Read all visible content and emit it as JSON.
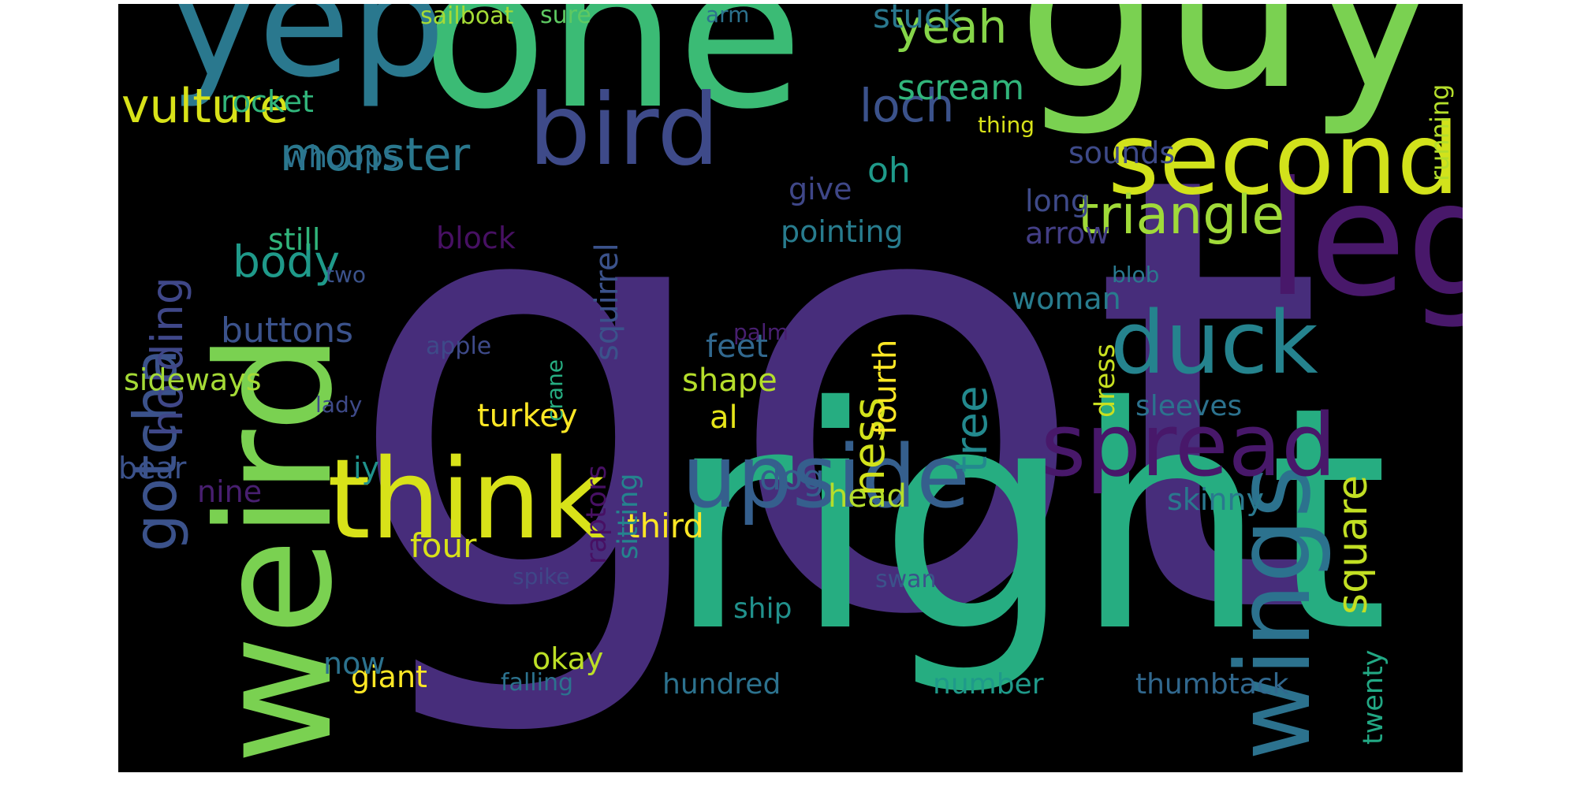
{
  "wordcloud": {
    "background": "#000000",
    "words": [
      {
        "text": "got",
        "color": "#472d7b"
      },
      {
        "text": "right",
        "color": "#26ad81"
      },
      {
        "text": "guy",
        "color": "#7ad151"
      },
      {
        "text": "one",
        "color": "#3bbb75"
      },
      {
        "text": "weird",
        "color": "#7ad151"
      },
      {
        "text": "legs",
        "color": "#48186a"
      },
      {
        "text": "yep",
        "color": "#2a788e"
      },
      {
        "text": "think",
        "color": "#d8e219"
      },
      {
        "text": "wings",
        "color": "#2c728e"
      },
      {
        "text": "bird",
        "color": "#3e4a89"
      },
      {
        "text": "second",
        "color": "#d2e21b"
      },
      {
        "text": "spread",
        "color": "#48186a"
      },
      {
        "text": "upside",
        "color": "#355f8d"
      },
      {
        "text": "duck",
        "color": "#25838e"
      },
      {
        "text": "triangle",
        "color": "#a0da39"
      },
      {
        "text": "gotcha",
        "color": "#3b528b"
      },
      {
        "text": "vulture",
        "color": "#d8e219"
      },
      {
        "text": "monster",
        "color": "#2a788e"
      },
      {
        "text": "loch",
        "color": "#3b528b"
      },
      {
        "text": "yeah",
        "color": "#86d549"
      },
      {
        "text": "body",
        "color": "#1f9a8a"
      },
      {
        "text": "holding",
        "color": "#3f4788"
      },
      {
        "text": "ness",
        "color": "#d2e21b"
      },
      {
        "text": "tree",
        "color": "#23898e"
      },
      {
        "text": "square",
        "color": "#c2df23"
      },
      {
        "text": "scream",
        "color": "#31b57b"
      },
      {
        "text": "oh",
        "color": "#1f9a8a"
      },
      {
        "text": "dog",
        "color": "#355f8d"
      },
      {
        "text": "buttons",
        "color": "#3b528b"
      },
      {
        "text": "stuck",
        "color": "#2a788e"
      },
      {
        "text": "rocket",
        "color": "#31b57b"
      },
      {
        "text": "whoops",
        "color": "#2c728e"
      },
      {
        "text": "sounds",
        "color": "#3e4a89"
      },
      {
        "text": "still",
        "color": "#31b57b"
      },
      {
        "text": "block",
        "color": "#471063"
      },
      {
        "text": "give",
        "color": "#3f4788"
      },
      {
        "text": "pointing",
        "color": "#287c8e"
      },
      {
        "text": "long",
        "color": "#3e4a89"
      },
      {
        "text": "arrow",
        "color": "#433e85"
      },
      {
        "text": "running",
        "color": "#b5de2b"
      },
      {
        "text": "fourth",
        "color": "#fde725"
      },
      {
        "text": "feet",
        "color": "#31688e"
      },
      {
        "text": "shape",
        "color": "#b5de2b"
      },
      {
        "text": "turkey",
        "color": "#fde725"
      },
      {
        "text": "al",
        "color": "#e5e419"
      },
      {
        "text": "squirrel",
        "color": "#3b528b"
      },
      {
        "text": "sideways",
        "color": "#a5db36"
      },
      {
        "text": "woman",
        "color": "#287c8e"
      },
      {
        "text": "dress",
        "color": "#c8e020"
      },
      {
        "text": "sleeves",
        "color": "#2c728e"
      },
      {
        "text": "head",
        "color": "#b5de2b"
      },
      {
        "text": "skinny",
        "color": "#2a788e"
      },
      {
        "text": "third",
        "color": "#fde725"
      },
      {
        "text": "four",
        "color": "#d8e219"
      },
      {
        "text": "raptors",
        "color": "#471063"
      },
      {
        "text": "sitting",
        "color": "#25838e"
      },
      {
        "text": "iy",
        "color": "#20928c"
      },
      {
        "text": "bear",
        "color": "#3b528b"
      },
      {
        "text": "nine",
        "color": "#481f70"
      },
      {
        "text": "ship",
        "color": "#21918c"
      },
      {
        "text": "twenty",
        "color": "#22a884"
      },
      {
        "text": "okay",
        "color": "#bddf26"
      },
      {
        "text": "giant",
        "color": "#fde725"
      },
      {
        "text": "now",
        "color": "#2c728e"
      },
      {
        "text": "hundred",
        "color": "#2c728e"
      },
      {
        "text": "number",
        "color": "#1f9a8a"
      },
      {
        "text": "thumbtack",
        "color": "#31688e"
      },
      {
        "text": "falling",
        "color": "#2c728e"
      },
      {
        "text": "swan",
        "color": "#3b528b"
      },
      {
        "text": "spike",
        "color": "#3f4788"
      },
      {
        "text": "crane",
        "color": "#26ad81"
      },
      {
        "text": "lady",
        "color": "#3e4a89"
      },
      {
        "text": "apple",
        "color": "#3e4a89"
      },
      {
        "text": "palm",
        "color": "#481f70"
      },
      {
        "text": "blob",
        "color": "#2a788e"
      },
      {
        "text": "two",
        "color": "#3b528b"
      },
      {
        "text": "thing",
        "color": "#d8e219"
      },
      {
        "text": "sailboat",
        "color": "#a5db36"
      },
      {
        "text": "sure",
        "color": "#5ec962"
      },
      {
        "text": "arm",
        "color": "#2c728e"
      }
    ]
  }
}
